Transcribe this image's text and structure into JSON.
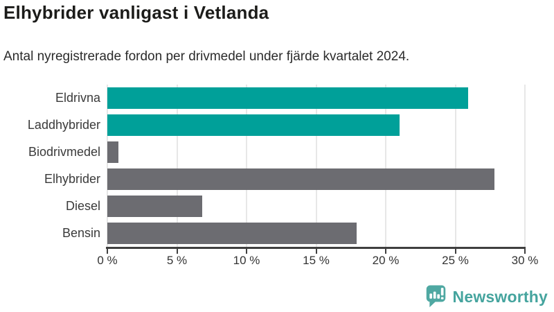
{
  "header": {
    "title": "Elhybrider vanligast i Vetlanda",
    "subtitle": "Antal nyregistrerade fordon per drivmedel under fjärde kvartalet 2024."
  },
  "chart_data": {
    "type": "bar",
    "orientation": "horizontal",
    "title": "Elhybrider vanligast i Vetlanda",
    "subtitle": "Antal nyregistrerade fordon per drivmedel under fjärde kvartalet 2024.",
    "categories": [
      "Eldrivna",
      "Laddhybrider",
      "Biodrivmedel",
      "Elhybrider",
      "Diesel",
      "Bensin"
    ],
    "values": [
      25.9,
      21.0,
      0.8,
      27.8,
      6.8,
      17.9
    ],
    "unit": "%",
    "bar_colors": [
      "#00A099",
      "#00A099",
      "#6C6C71",
      "#6C6C71",
      "#6C6C71",
      "#6C6C71"
    ],
    "xlim": [
      0,
      30
    ],
    "x_tick_values": [
      0,
      5,
      10,
      15,
      20,
      25,
      30
    ],
    "x_tick_labels": [
      "0 %",
      "5 %",
      "10 %",
      "15 %",
      "20 %",
      "25 %",
      "30 %"
    ],
    "grid": true,
    "legend": false
  },
  "colors": {
    "accent_teal": "#00A099",
    "neutral_gray": "#6C6C71",
    "axis": "#3f3f3f",
    "gridline": "#e7e7e7"
  },
  "branding": {
    "logo_text": "Newsworthy",
    "logo_icon": "newsworthy-speech-bubble-bar-chart-icon",
    "logo_color": "#45A49E"
  }
}
